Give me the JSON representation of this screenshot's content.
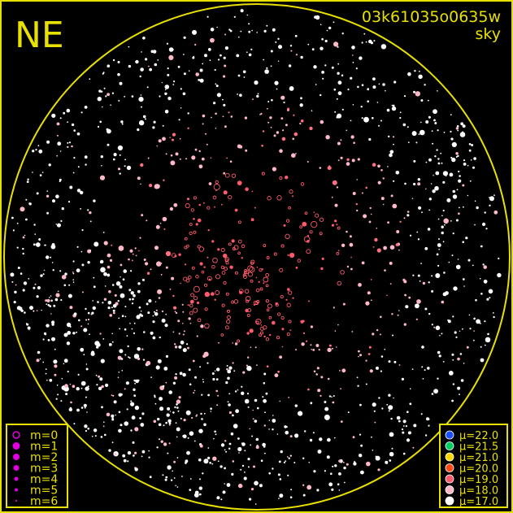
{
  "title": {
    "direction": "NE",
    "image_id": "03k61035o0635w",
    "subtitle": "sky"
  },
  "colors": {
    "frame": "#e8e000",
    "text": "#e8e000",
    "magnitude_marker": "#e000e0"
  },
  "magnitude_legend": [
    {
      "label": "m=0",
      "marker": "open-circle"
    },
    {
      "label": "m=1",
      "marker": "filled-circle"
    },
    {
      "label": "m=2",
      "marker": "filled-circle"
    },
    {
      "label": "m=3",
      "marker": "filled-circle"
    },
    {
      "label": "m=4",
      "marker": "filled-circle"
    },
    {
      "label": "m=5",
      "marker": "filled-circle"
    },
    {
      "label": "m=6",
      "marker": "filled-circle"
    }
  ],
  "brightness_legend": [
    {
      "label": "μ=22.0",
      "color": "#1a50ff"
    },
    {
      "label": "μ=21.5",
      "color": "#00d060"
    },
    {
      "label": "μ=21.0",
      "color": "#ffd800"
    },
    {
      "label": "μ=20.0",
      "color": "#ff4a10"
    },
    {
      "label": "μ=19.0",
      "color": "#ff5a6a"
    },
    {
      "label": "μ=18.0",
      "color": "#ffb8c8"
    },
    {
      "label": "μ=17.0",
      "color": "#ffffff"
    }
  ]
}
